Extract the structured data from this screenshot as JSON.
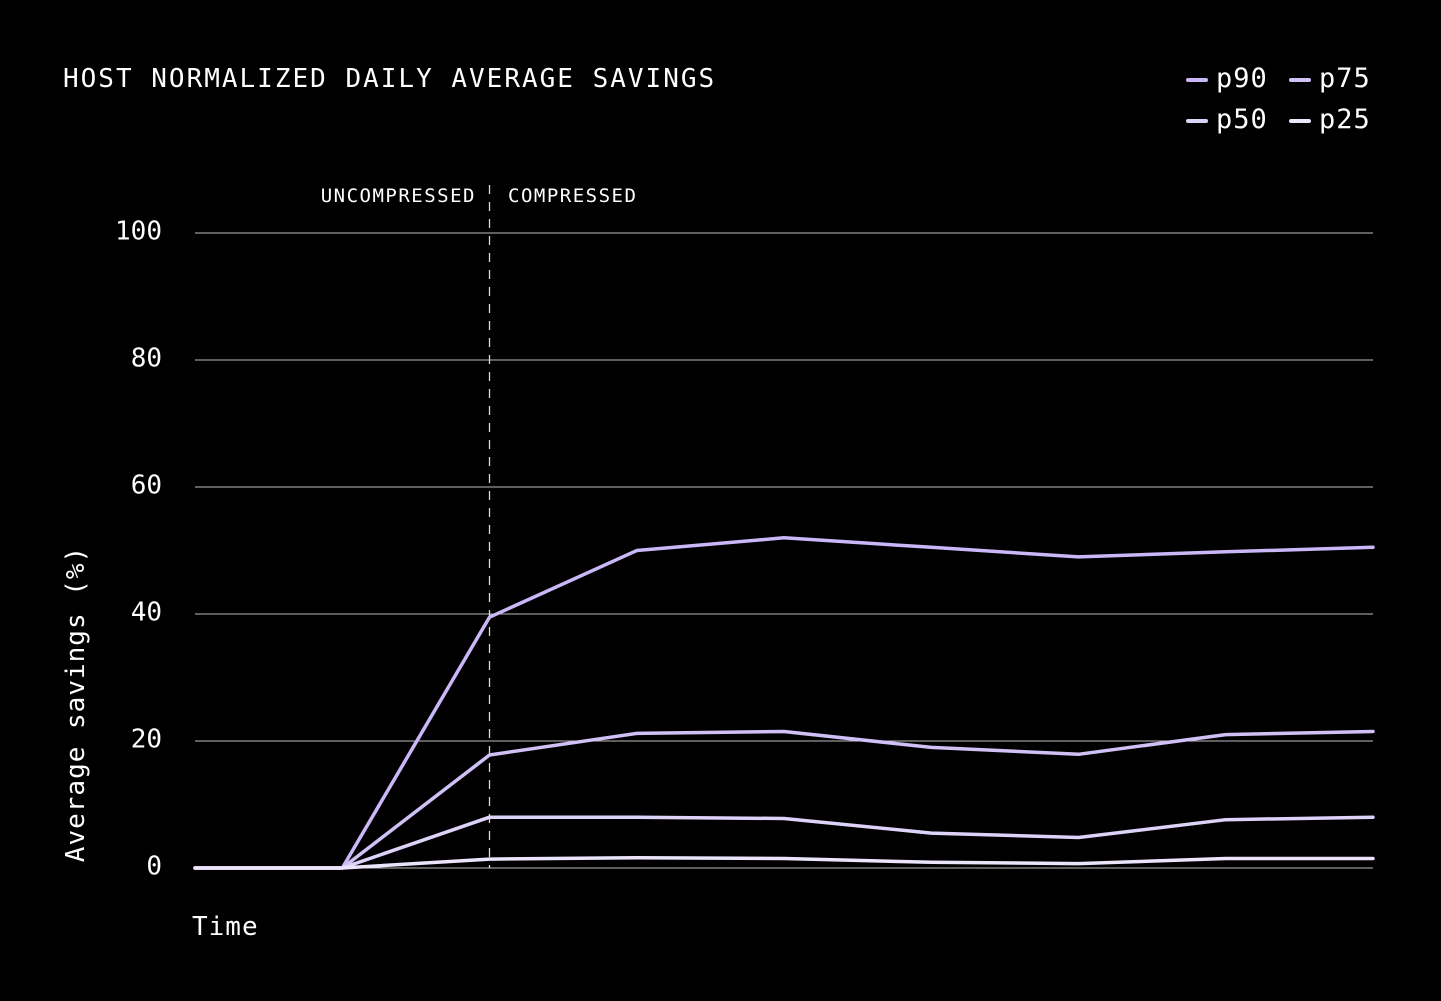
{
  "chart_data": {
    "type": "line",
    "title": "HOST NORMALIZED DAILY AVERAGE SAVINGS",
    "xlabel": "Time",
    "ylabel": "Average savings (%)",
    "ylim": [
      0,
      100
    ],
    "yticks": [
      0,
      20,
      40,
      60,
      80,
      100
    ],
    "grid": true,
    "legend_position": "top-right",
    "x": [
      0,
      1,
      2,
      3,
      4,
      5,
      6,
      7,
      8
    ],
    "regions": {
      "left_label": "UNCOMPRESSED",
      "right_label": "COMPRESSED",
      "divider_x": 2
    },
    "series": [
      {
        "name": "p90",
        "color": "#c9b7f7",
        "values": [
          0,
          0,
          39.5,
          50,
          52,
          50.5,
          49,
          49.8,
          50.5
        ]
      },
      {
        "name": "p75",
        "color": "#cfc0f5",
        "values": [
          0,
          0,
          17.8,
          21.2,
          21.5,
          19,
          17.9,
          21,
          21.5
        ]
      },
      {
        "name": "p50",
        "color": "#ddd2f8",
        "values": [
          0,
          0,
          8,
          8,
          7.8,
          5.5,
          4.8,
          7.6,
          8
        ]
      },
      {
        "name": "p25",
        "color": "#ebe4fb",
        "values": [
          0,
          0,
          1.4,
          1.6,
          1.5,
          0.9,
          0.7,
          1.5,
          1.5
        ]
      }
    ]
  }
}
